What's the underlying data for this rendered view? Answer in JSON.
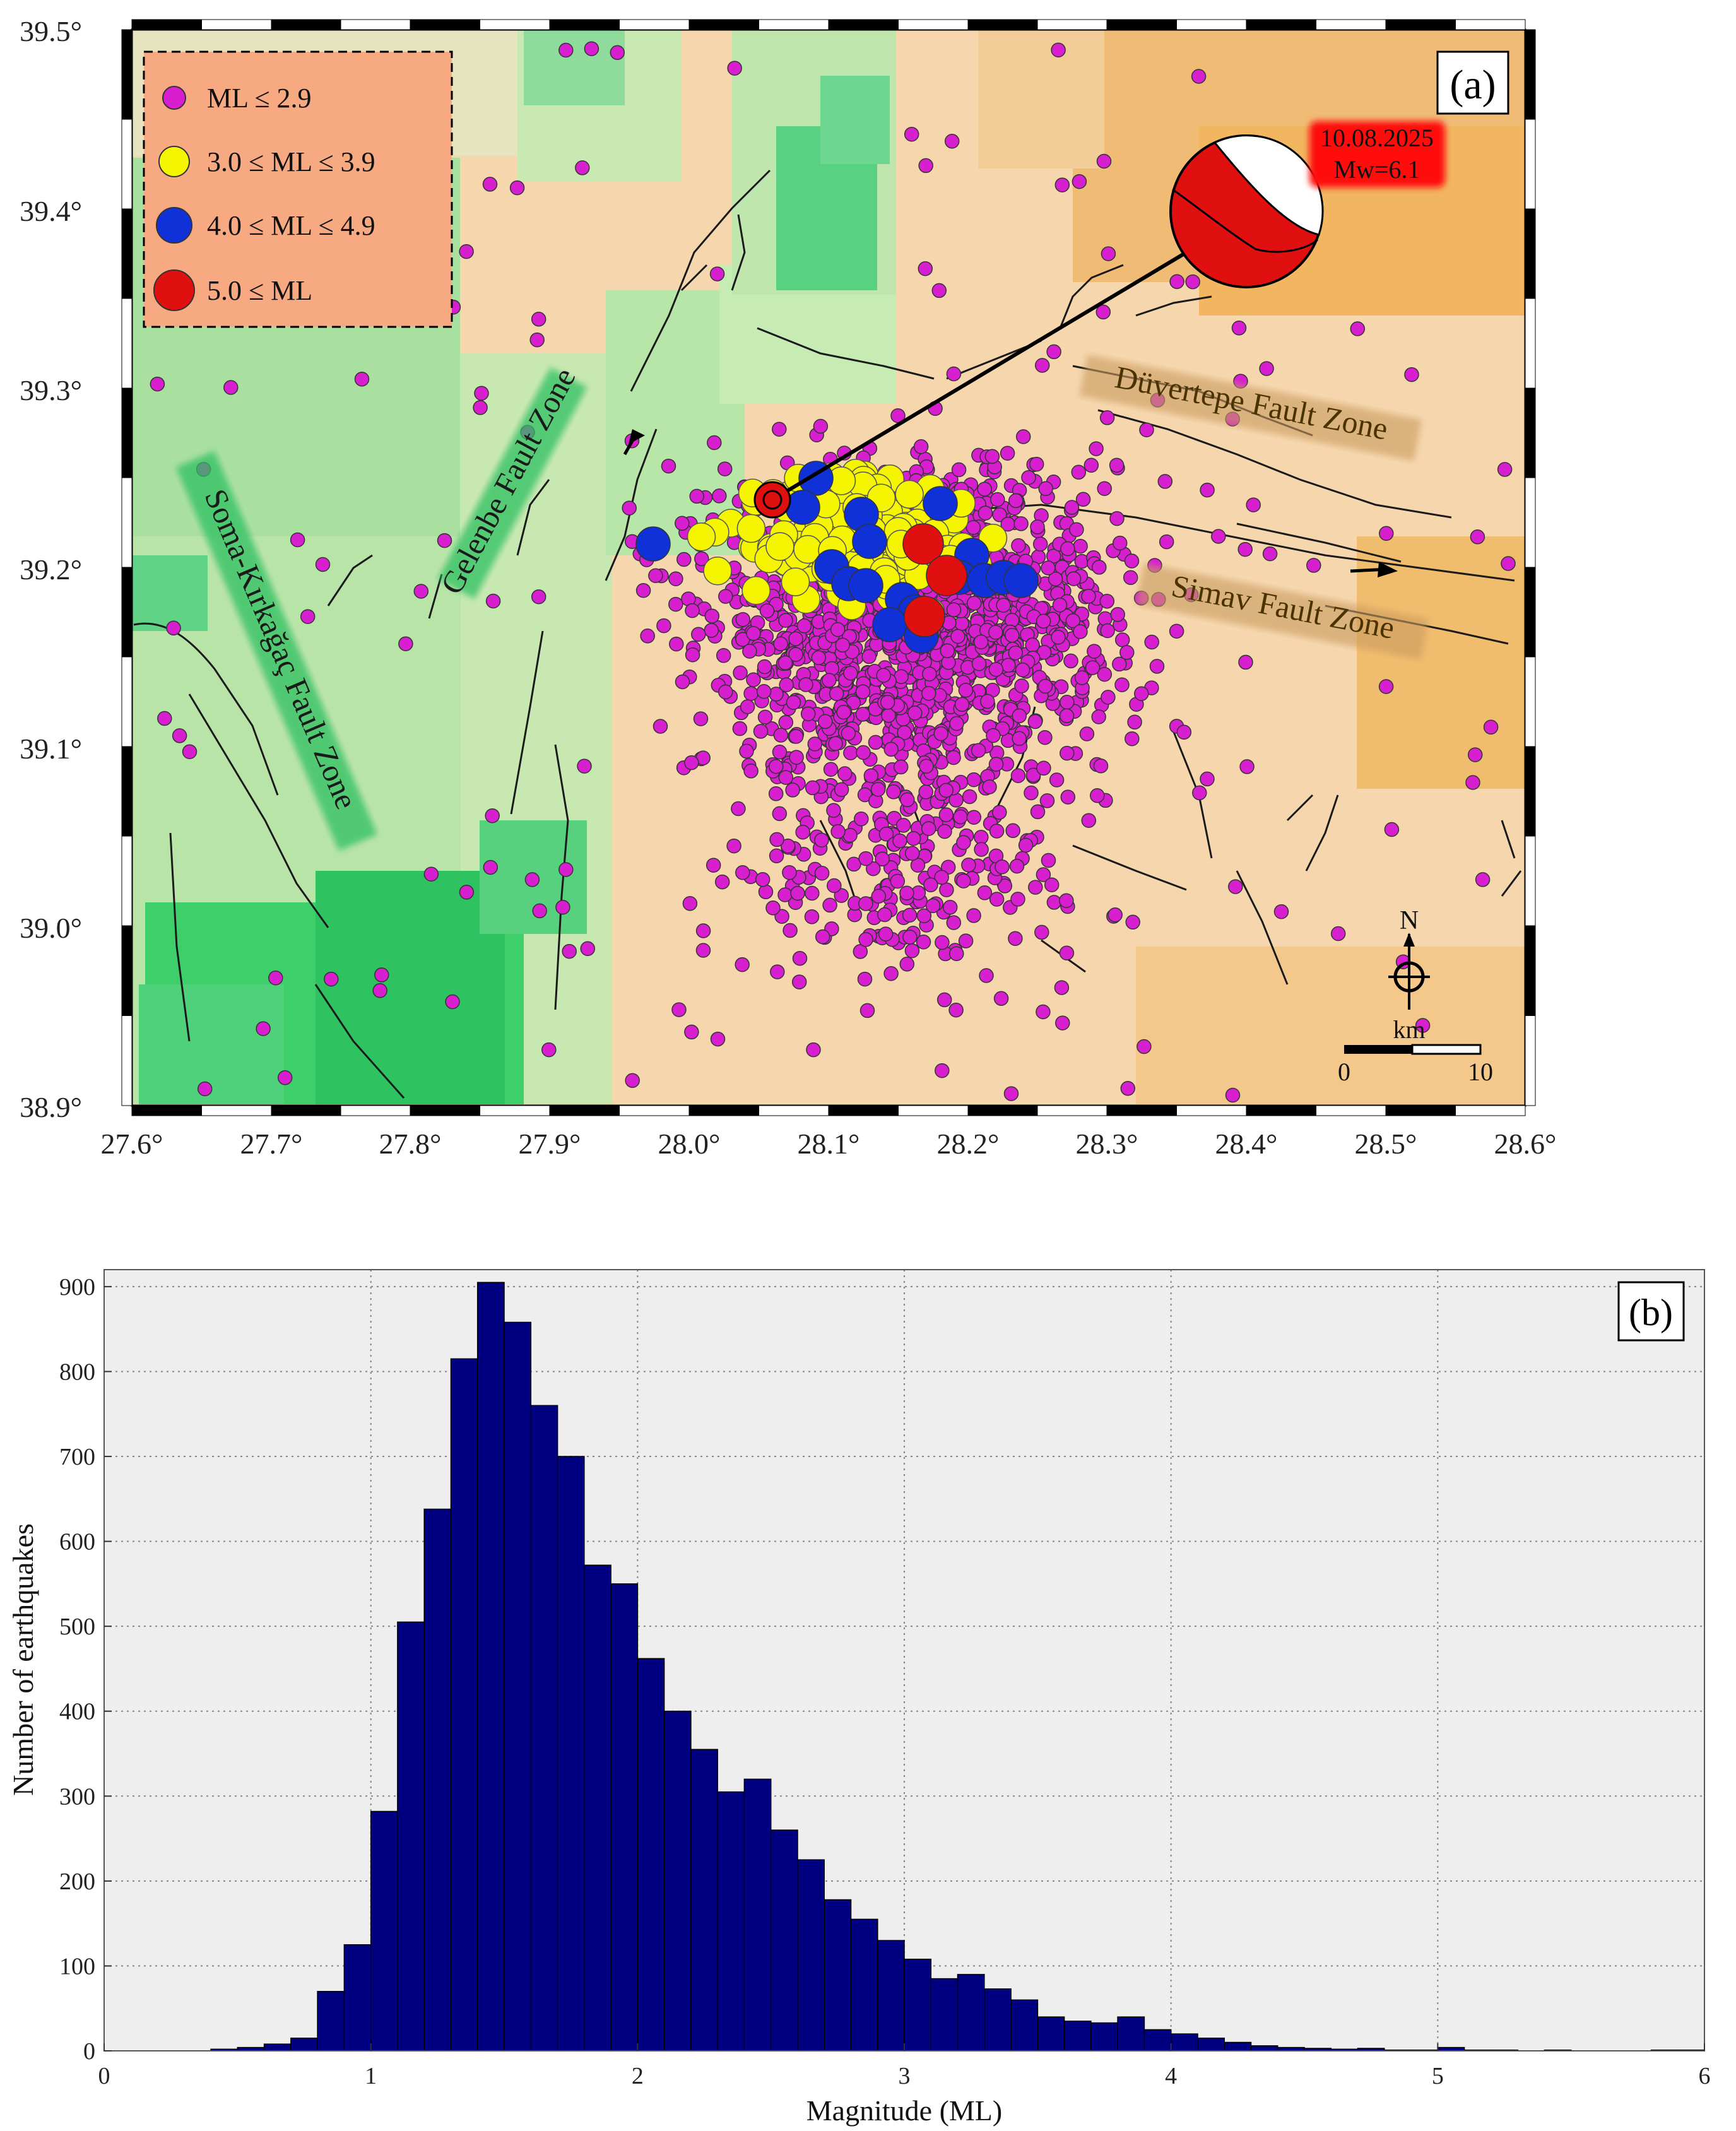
{
  "panel_a": {
    "label": "(a)",
    "x_ticks": [
      "27.6°",
      "27.7°",
      "27.8°",
      "27.9°",
      "28.0°",
      "28.1°",
      "28.2°",
      "28.3°",
      "28.4°",
      "28.5°",
      "28.6°"
    ],
    "y_ticks": [
      "39.5°",
      "39.4°",
      "39.3°",
      "39.2°",
      "39.1°",
      "39.0°",
      "38.9°"
    ],
    "legend": [
      {
        "label": "ML ≤ 2.9",
        "color": "#d81fd0"
      },
      {
        "label": "3.0 ≤ ML ≤ 3.9",
        "color": "#f5f500"
      },
      {
        "label": "4.0 ≤ ML ≤ 4.9",
        "color": "#1030d8"
      },
      {
        "label": "5.0 ≤ ML",
        "color": "#e01010"
      }
    ],
    "mainshock": {
      "date": "10.08.2025",
      "magnitude": "Mw=6.1",
      "lon": 28.06,
      "lat": 39.24
    },
    "faults": [
      "Gelenbe Fault Zone",
      "Soma-Kırkağaç Fault Zone",
      "Düvertepe Fault Zone",
      "Simav Fault Zone"
    ],
    "north": "N",
    "scale_unit": "km",
    "scale_ticks": [
      "0",
      "10"
    ],
    "extent": {
      "lon": [
        27.6,
        28.6
      ],
      "lat": [
        38.9,
        39.5
      ]
    },
    "colors": {
      "lowland": "#3fcf6a",
      "upland": "#f2b05a",
      "frame": "#000000"
    }
  },
  "chart_data": {
    "type": "bar",
    "panel_label": "(b)",
    "xlabel": "Magnitude (ML)",
    "ylabel": "Number of earthquakes",
    "xlim": [
      0,
      6
    ],
    "ylim": [
      0,
      920
    ],
    "x_ticks": [
      "0",
      "1",
      "2",
      "3",
      "4",
      "5",
      "6"
    ],
    "y_ticks": [
      "0",
      "100",
      "200",
      "300",
      "400",
      "500",
      "600",
      "700",
      "800",
      "900"
    ],
    "bin_width": 0.1,
    "bin_starts": [
      0.4,
      0.5,
      0.6,
      0.7,
      0.8,
      0.9,
      1.0,
      1.1,
      1.2,
      1.3,
      1.4,
      1.5,
      1.6,
      1.7,
      1.8,
      1.9,
      2.0,
      2.1,
      2.2,
      2.3,
      2.4,
      2.5,
      2.6,
      2.7,
      2.8,
      2.9,
      3.0,
      3.1,
      3.2,
      3.3,
      3.4,
      3.5,
      3.6,
      3.7,
      3.8,
      3.9,
      4.0,
      4.1,
      4.2,
      4.3,
      4.4,
      4.5,
      4.6,
      4.7,
      4.8,
      4.9,
      5.0,
      5.1,
      5.2,
      5.3,
      5.4,
      5.5,
      5.6,
      5.7,
      5.8,
      5.9
    ],
    "values": [
      2,
      4,
      8,
      15,
      70,
      125,
      282,
      505,
      638,
      815,
      905,
      858,
      760,
      700,
      572,
      550,
      462,
      400,
      355,
      305,
      320,
      260,
      225,
      178,
      155,
      130,
      108,
      85,
      90,
      73,
      60,
      40,
      35,
      33,
      40,
      25,
      20,
      15,
      10,
      6,
      4,
      3,
      2,
      3,
      1,
      1,
      4,
      1,
      1,
      0,
      1,
      0,
      0,
      0,
      1,
      1
    ],
    "bar_color": "#000080",
    "grid": true
  }
}
